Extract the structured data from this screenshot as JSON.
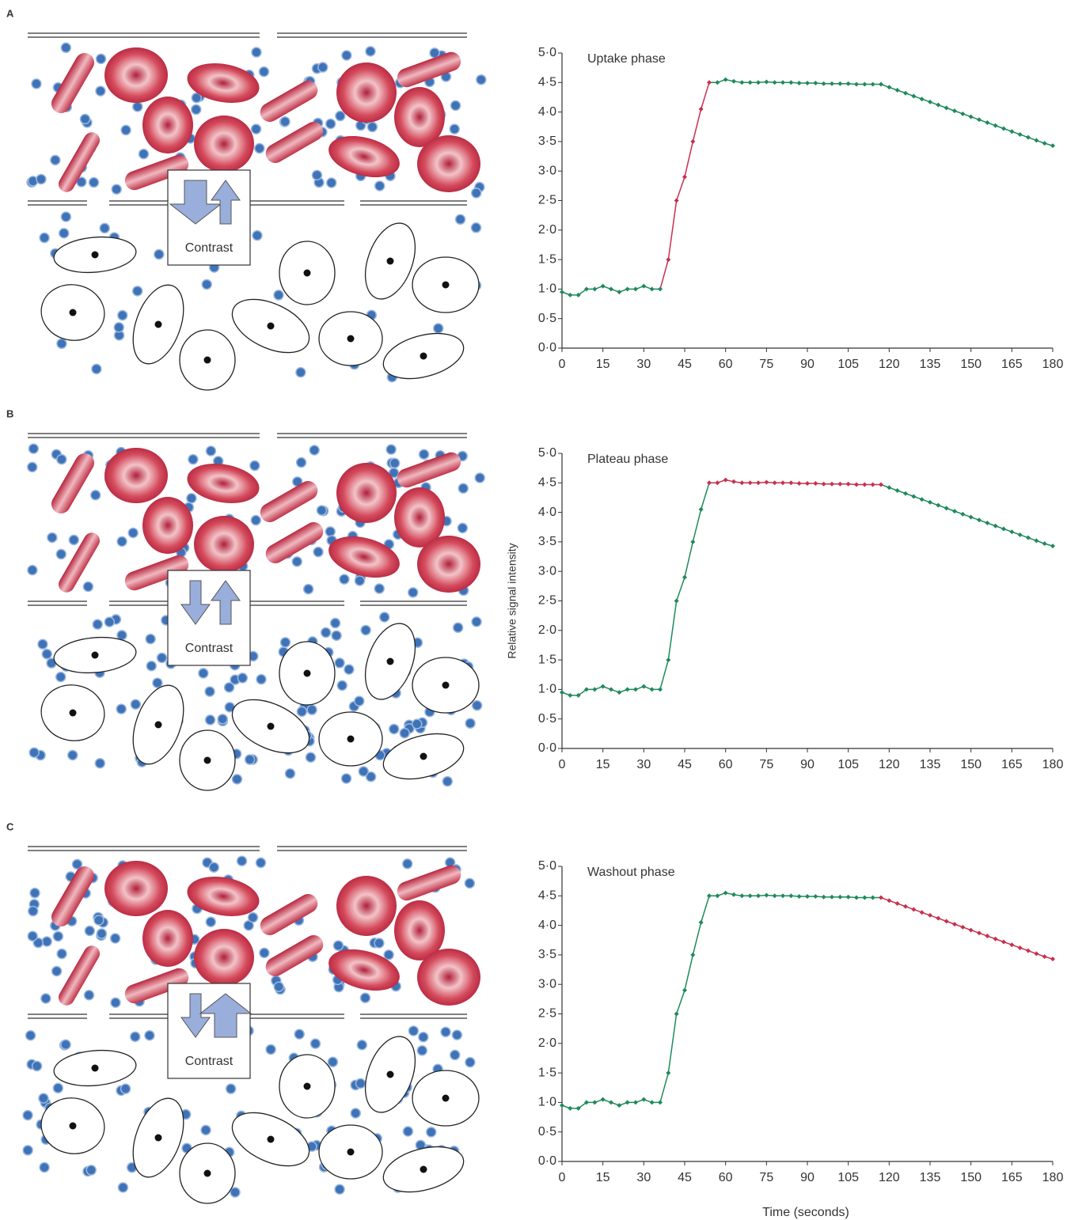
{
  "panels": [
    {
      "label": "A",
      "contrast_label": "Contrast"
    },
    {
      "label": "B",
      "contrast_label": "Contrast"
    },
    {
      "label": "C",
      "contrast_label": "Contrast"
    }
  ],
  "chart_data": [
    {
      "type": "line",
      "title": "Uptake phase",
      "x": [
        0,
        3,
        6,
        9,
        12,
        15,
        18,
        21,
        24,
        27,
        30,
        33,
        36,
        39,
        42,
        45,
        48,
        51,
        54,
        57,
        60,
        63,
        66,
        69,
        72,
        75,
        78,
        81,
        84,
        87,
        90,
        93,
        96,
        99,
        102,
        105,
        108,
        111,
        114,
        117,
        120,
        123,
        126,
        129,
        132,
        135,
        138,
        141,
        144,
        147,
        150,
        153,
        156,
        159,
        162,
        165,
        168,
        171,
        174,
        177,
        180
      ],
      "values": [
        0.95,
        0.9,
        0.9,
        1.0,
        1.0,
        1.05,
        1.0,
        0.95,
        1.0,
        1.0,
        1.05,
        1.0,
        1.0,
        1.5,
        2.5,
        2.9,
        3.5,
        4.05,
        4.5,
        4.5,
        4.55,
        4.52,
        4.5,
        4.5,
        4.5,
        4.51,
        4.5,
        4.5,
        4.5,
        4.49,
        4.49,
        4.49,
        4.48,
        4.48,
        4.48,
        4.48,
        4.47,
        4.47,
        4.47,
        4.47,
        4.42,
        4.37,
        4.32,
        4.27,
        4.22,
        4.17,
        4.12,
        4.07,
        4.02,
        3.97,
        3.92,
        3.87,
        3.82,
        3.77,
        3.72,
        3.67,
        3.62,
        3.57,
        3.52,
        3.47,
        3.43
      ],
      "color": "#1e8a5a",
      "highlight_color": "#c8304e",
      "highlight_xlim": [
        36,
        54
      ],
      "xlim": [
        0,
        180
      ],
      "xticks": [
        0,
        15,
        30,
        45,
        60,
        75,
        90,
        105,
        120,
        135,
        150,
        165,
        180
      ],
      "ylim": [
        0,
        5
      ],
      "yticks": [
        {
          "value": 0,
          "label": "0·0"
        },
        {
          "value": 0.5,
          "label": "0·5"
        },
        {
          "value": 1,
          "label": "1·0"
        },
        {
          "value": 1.5,
          "label": "1·5"
        },
        {
          "value": 2,
          "label": "2·0"
        },
        {
          "value": 2.5,
          "label": "2·5"
        },
        {
          "value": 3,
          "label": "3·0"
        },
        {
          "value": 3.5,
          "label": "3·5"
        },
        {
          "value": 4,
          "label": "4·0"
        },
        {
          "value": 4.5,
          "label": "4·5"
        },
        {
          "value": 5,
          "label": "5·0"
        }
      ]
    },
    {
      "type": "line",
      "title": "Plateau phase",
      "y_label": "Relative signal intensity",
      "x": [
        0,
        3,
        6,
        9,
        12,
        15,
        18,
        21,
        24,
        27,
        30,
        33,
        36,
        39,
        42,
        45,
        48,
        51,
        54,
        57,
        60,
        63,
        66,
        69,
        72,
        75,
        78,
        81,
        84,
        87,
        90,
        93,
        96,
        99,
        102,
        105,
        108,
        111,
        114,
        117,
        120,
        123,
        126,
        129,
        132,
        135,
        138,
        141,
        144,
        147,
        150,
        153,
        156,
        159,
        162,
        165,
        168,
        171,
        174,
        177,
        180
      ],
      "values": [
        0.95,
        0.9,
        0.9,
        1.0,
        1.0,
        1.05,
        1.0,
        0.95,
        1.0,
        1.0,
        1.05,
        1.0,
        1.0,
        1.5,
        2.5,
        2.9,
        3.5,
        4.05,
        4.5,
        4.5,
        4.55,
        4.52,
        4.5,
        4.5,
        4.5,
        4.51,
        4.5,
        4.5,
        4.5,
        4.49,
        4.49,
        4.49,
        4.48,
        4.48,
        4.48,
        4.48,
        4.47,
        4.47,
        4.47,
        4.47,
        4.42,
        4.37,
        4.32,
        4.27,
        4.22,
        4.17,
        4.12,
        4.07,
        4.02,
        3.97,
        3.92,
        3.87,
        3.82,
        3.77,
        3.72,
        3.67,
        3.62,
        3.57,
        3.52,
        3.47,
        3.43
      ],
      "color": "#1e8a5a",
      "highlight_color": "#c8304e",
      "highlight_xlim": [
        54,
        117
      ],
      "xlim": [
        0,
        180
      ],
      "xticks": [
        0,
        15,
        30,
        45,
        60,
        75,
        90,
        105,
        120,
        135,
        150,
        165,
        180
      ],
      "ylim": [
        0,
        5
      ],
      "yticks": [
        {
          "value": 0,
          "label": "0·0"
        },
        {
          "value": 0.5,
          "label": "0·5"
        },
        {
          "value": 1,
          "label": "1·0"
        },
        {
          "value": 1.5,
          "label": "1·5"
        },
        {
          "value": 2,
          "label": "2·0"
        },
        {
          "value": 2.5,
          "label": "2·5"
        },
        {
          "value": 3,
          "label": "3·0"
        },
        {
          "value": 3.5,
          "label": "3·5"
        },
        {
          "value": 4,
          "label": "4·0"
        },
        {
          "value": 4.5,
          "label": "4·5"
        },
        {
          "value": 5,
          "label": "5·0"
        }
      ]
    },
    {
      "type": "line",
      "title": "Washout phase",
      "x_label": "Time (seconds)",
      "x": [
        0,
        3,
        6,
        9,
        12,
        15,
        18,
        21,
        24,
        27,
        30,
        33,
        36,
        39,
        42,
        45,
        48,
        51,
        54,
        57,
        60,
        63,
        66,
        69,
        72,
        75,
        78,
        81,
        84,
        87,
        90,
        93,
        96,
        99,
        102,
        105,
        108,
        111,
        114,
        117,
        120,
        123,
        126,
        129,
        132,
        135,
        138,
        141,
        144,
        147,
        150,
        153,
        156,
        159,
        162,
        165,
        168,
        171,
        174,
        177,
        180
      ],
      "values": [
        0.95,
        0.9,
        0.9,
        1.0,
        1.0,
        1.05,
        1.0,
        0.95,
        1.0,
        1.0,
        1.05,
        1.0,
        1.0,
        1.5,
        2.5,
        2.9,
        3.5,
        4.05,
        4.5,
        4.5,
        4.55,
        4.52,
        4.5,
        4.5,
        4.5,
        4.51,
        4.5,
        4.5,
        4.5,
        4.49,
        4.49,
        4.49,
        4.48,
        4.48,
        4.48,
        4.48,
        4.47,
        4.47,
        4.47,
        4.47,
        4.42,
        4.37,
        4.32,
        4.27,
        4.22,
        4.17,
        4.12,
        4.07,
        4.02,
        3.97,
        3.92,
        3.87,
        3.82,
        3.77,
        3.72,
        3.67,
        3.62,
        3.57,
        3.52,
        3.47,
        3.43
      ],
      "color": "#1e8a5a",
      "highlight_color": "#c8304e",
      "highlight_xlim": [
        117,
        180
      ],
      "xlim": [
        0,
        180
      ],
      "xticks": [
        0,
        15,
        30,
        45,
        60,
        75,
        90,
        105,
        120,
        135,
        150,
        165,
        180
      ],
      "ylim": [
        0,
        5
      ],
      "yticks": [
        {
          "value": 0,
          "label": "0·0"
        },
        {
          "value": 0.5,
          "label": "0·5"
        },
        {
          "value": 1,
          "label": "1·0"
        },
        {
          "value": 1.5,
          "label": "1·5"
        },
        {
          "value": 2,
          "label": "2·0"
        },
        {
          "value": 2.5,
          "label": "2·5"
        },
        {
          "value": 3,
          "label": "3·0"
        },
        {
          "value": 3.5,
          "label": "3·5"
        },
        {
          "value": 4,
          "label": "4·0"
        },
        {
          "value": 4.5,
          "label": "4·5"
        },
        {
          "value": 5,
          "label": "5·0"
        }
      ]
    }
  ]
}
